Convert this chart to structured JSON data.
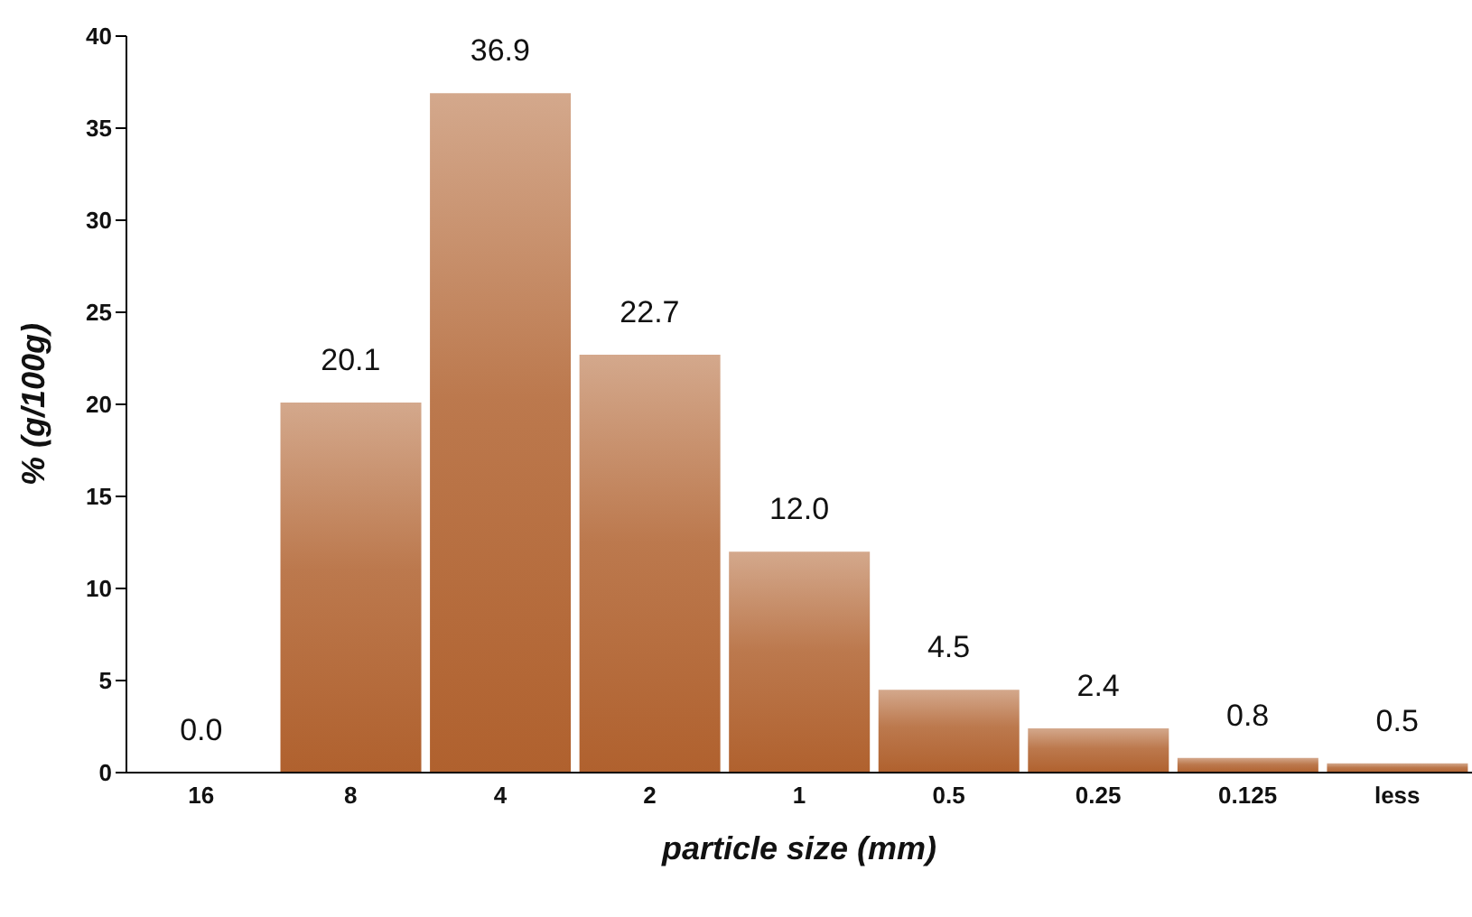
{
  "chart_data": {
    "type": "bar",
    "xlabel": "particle size (mm)",
    "ylabel": "% (g/100g)",
    "categories": [
      "16",
      "8",
      "4",
      "2",
      "1",
      "0.5",
      "0.25",
      "0.125",
      "less"
    ],
    "values": [
      0.0,
      20.1,
      36.9,
      22.7,
      12.0,
      4.5,
      2.4,
      0.8,
      0.5
    ],
    "value_labels": [
      "0.0",
      "20.1",
      "36.9",
      "22.7",
      "12.0",
      "4.5",
      "2.4",
      "0.8",
      "0.5"
    ],
    "color": "#b0612e",
    "ylim": [
      0,
      40
    ],
    "yticks": [
      0,
      5,
      10,
      15,
      20,
      25,
      30,
      35,
      40
    ],
    "grid": false
  }
}
